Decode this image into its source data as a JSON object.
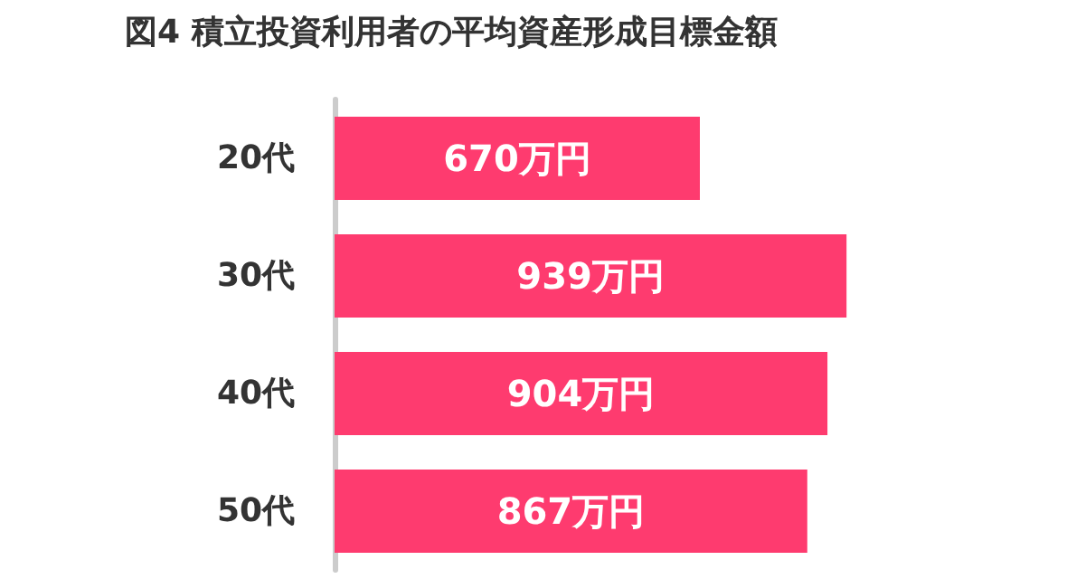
{
  "chart_data": {
    "type": "bar",
    "orientation": "horizontal",
    "title": "図4 積立投資利用者の平均資産形成目標金額",
    "categories": [
      "20代",
      "30代",
      "40代",
      "50代"
    ],
    "values": [
      670,
      939,
      904,
      867
    ],
    "value_labels": [
      "670万円",
      "939万円",
      "904万円",
      "867万円"
    ],
    "color": "#fe3b6f"
  }
}
